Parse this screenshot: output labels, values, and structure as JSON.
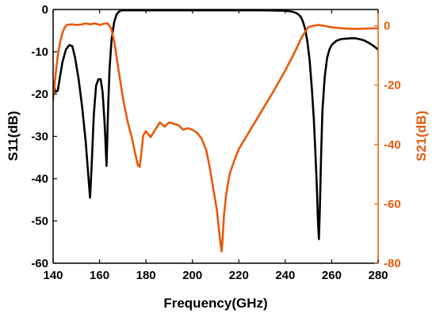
{
  "chart_data": {
    "type": "line",
    "xlabel": "Frequency(GHz)",
    "ylabel_left": "S11(dB)",
    "ylabel_right": "S21(dB)",
    "xlim": [
      140,
      280
    ],
    "ylim_left": [
      -60,
      0
    ],
    "ylim_right": [
      -80,
      5.5
    ],
    "xticks": [
      140,
      160,
      180,
      200,
      220,
      240,
      260,
      280
    ],
    "yticks_left": [
      0,
      -10,
      -20,
      -30,
      -40,
      -50,
      -60
    ],
    "yticks_right": [
      0,
      -20,
      -40,
      -60,
      -80
    ],
    "grid": false,
    "legend": "none",
    "colors": {
      "s11": "#000000",
      "s21": "#E8590C",
      "axis_left": "#000000",
      "axis_right": "#E8590C"
    },
    "series": [
      {
        "axis": "left",
        "x": [
          140,
          141,
          142,
          142.8,
          144,
          145.5,
          147,
          148.3,
          149.5,
          151,
          152.5,
          154,
          155.2,
          155.9,
          156.6,
          157.5,
          158.5,
          159.5,
          160.5,
          161.3,
          162.2,
          163,
          163.6,
          164.3,
          165.2,
          166.3,
          167.3,
          168.2,
          169,
          170,
          172,
          176,
          190,
          210,
          230,
          240,
          243,
          245,
          246.5,
          247.5,
          248.5,
          249.5,
          250.5,
          251.5,
          252.3,
          253,
          253.6,
          254.1,
          254.5,
          254.9,
          255.4,
          256,
          257,
          258,
          259,
          260,
          262,
          264,
          266,
          268,
          270,
          272,
          274,
          276,
          278,
          280
        ],
        "y": [
          -17,
          -19.5,
          -19.2,
          -16.5,
          -12.5,
          -9.5,
          -8.4,
          -8.7,
          -11.5,
          -16.5,
          -23,
          -31,
          -39.5,
          -44.5,
          -37,
          -25,
          -18,
          -16.5,
          -16.5,
          -19.5,
          -27,
          -37,
          -25,
          -14,
          -7,
          -3,
          -1.2,
          -0.6,
          -0.3,
          -0.2,
          -0.2,
          -0.2,
          -0.2,
          -0.2,
          -0.2,
          -0.3,
          -0.5,
          -0.9,
          -1.6,
          -2.7,
          -4.5,
          -7.5,
          -12,
          -19,
          -26,
          -34,
          -42,
          -50,
          -54.3,
          -47,
          -35,
          -24,
          -16,
          -11.5,
          -9.5,
          -8.4,
          -7.4,
          -7,
          -6.9,
          -6.8,
          -6.8,
          -7,
          -7.3,
          -7.9,
          -8.6,
          -9.5
        ]
      },
      {
        "axis": "right",
        "x": [
          140,
          141,
          142,
          143,
          144,
          145,
          146,
          148,
          150,
          152,
          154,
          156,
          158,
          160,
          162,
          163.5,
          165,
          166.5,
          168,
          170,
          172,
          174,
          175.5,
          176.5,
          177.3,
          178,
          178.8,
          180,
          182,
          184,
          186,
          188,
          190,
          192,
          194,
          196,
          198,
          200,
          202,
          204,
          206,
          207.5,
          209,
          210.5,
          211.5,
          212.2,
          212.6,
          213,
          213.6,
          214.5,
          216,
          218,
          220,
          225,
          230,
          235,
          240,
          244,
          247,
          249,
          250,
          252,
          254,
          256,
          258,
          260,
          264,
          268,
          272,
          276,
          280
        ],
        "y": [
          -25,
          -17,
          -10,
          -5.5,
          -2.5,
          -0.5,
          0.3,
          0.5,
          0.3,
          0.4,
          0.8,
          0.5,
          0.8,
          0.3,
          0.7,
          0.8,
          -0.8,
          -6,
          -14,
          -24,
          -32,
          -38,
          -43.5,
          -47,
          -47.5,
          -43,
          -37,
          -35.5,
          -37.5,
          -35,
          -32.5,
          -34,
          -32.5,
          -33,
          -33.5,
          -35,
          -34.5,
          -35,
          -36,
          -38,
          -42,
          -48,
          -55,
          -62,
          -69,
          -74,
          -76,
          -72,
          -64,
          -57,
          -50,
          -45.5,
          -41.5,
          -35,
          -28.5,
          -22,
          -15,
          -9,
          -4,
          -1.5,
          -0.4,
          0,
          0.3,
          0.1,
          -0.2,
          -0.5,
          -0.8,
          -1,
          -1,
          -0.9,
          -0.8
        ]
      }
    ]
  }
}
